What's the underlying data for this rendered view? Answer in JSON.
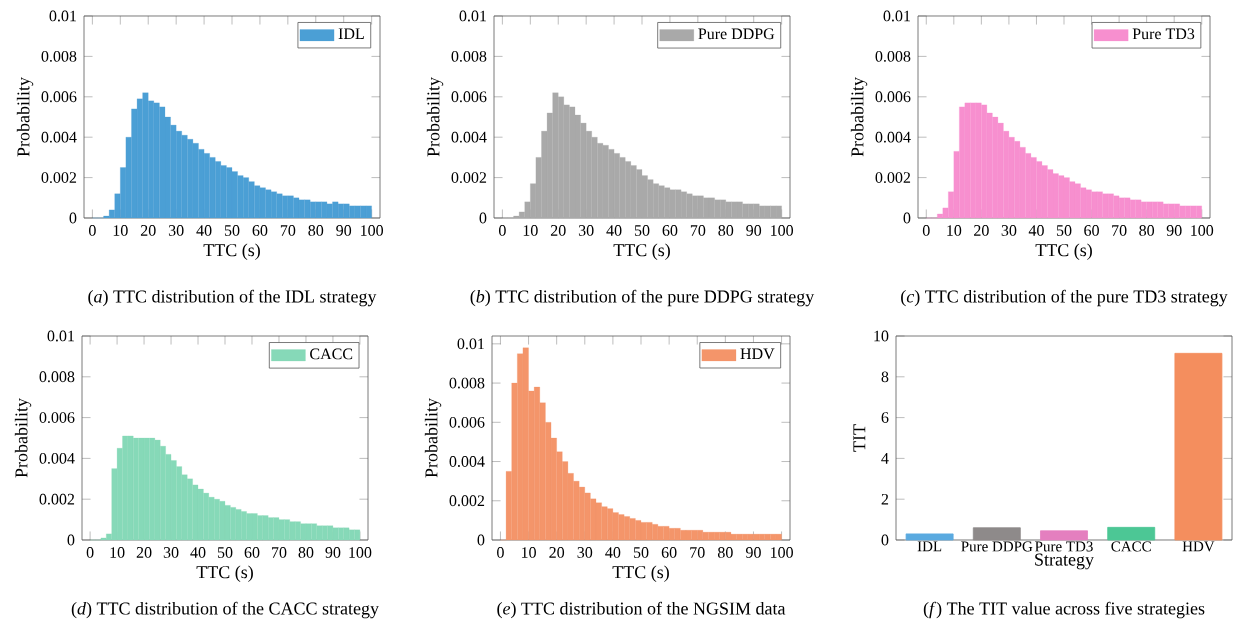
{
  "chart_data": [
    {
      "type": "histogram",
      "xlabel": "TTC (s)",
      "ylabel": "Probability",
      "legend": "top right",
      "bins": [
        0,
        2,
        4,
        6,
        8,
        10,
        12,
        14,
        16,
        18,
        20,
        22,
        24,
        26,
        28,
        30,
        32,
        34,
        36,
        38,
        40,
        42,
        44,
        46,
        48,
        50,
        52,
        54,
        56,
        58,
        60,
        62,
        64,
        66,
        68,
        70,
        72,
        74,
        76,
        78,
        80,
        82,
        84,
        86,
        88,
        90,
        92,
        94,
        96,
        98,
        100
      ],
      "series": [
        {
          "name": "IDL",
          "color": "#4b9fd5",
          "values": [
            0,
            0,
            0.0001,
            0.0004,
            0.0012,
            0.0025,
            0.004,
            0.0054,
            0.0059,
            0.0062,
            0.0058,
            0.0057,
            0.0055,
            0.005,
            0.0046,
            0.0043,
            0.0041,
            0.0039,
            0.0037,
            0.0034,
            0.0032,
            0.003,
            0.0028,
            0.0026,
            0.0025,
            0.0023,
            0.0021,
            0.002,
            0.0018,
            0.0016,
            0.0015,
            0.0014,
            0.0013,
            0.0012,
            0.0011,
            0.0011,
            0.001,
            0.0009,
            0.0009,
            0.0008,
            0.0008,
            0.0008,
            0.0007,
            0.0008,
            0.0007,
            0.0007,
            0.0006,
            0.0006,
            0.0006,
            0.0006
          ]
        }
      ],
      "xlim": [
        -3,
        103
      ],
      "xticks": [
        0,
        10,
        20,
        30,
        40,
        50,
        60,
        70,
        80,
        90,
        100
      ],
      "ylim": [
        0,
        0.01
      ],
      "yticks": [
        0,
        0.002,
        0.004,
        0.006,
        0.008,
        0.01
      ],
      "annotations": [
        "(*a*) TTC distribution of the IDL strategy"
      ]
    },
    {
      "type": "histogram",
      "xlabel": "TTC (s)",
      "ylabel": "Probability",
      "legend": "top right",
      "bins": [
        0,
        2,
        4,
        6,
        8,
        10,
        12,
        14,
        16,
        18,
        20,
        22,
        24,
        26,
        28,
        30,
        32,
        34,
        36,
        38,
        40,
        42,
        44,
        46,
        48,
        50,
        52,
        54,
        56,
        58,
        60,
        62,
        64,
        66,
        68,
        70,
        72,
        74,
        76,
        78,
        80,
        82,
        84,
        86,
        88,
        90,
        92,
        94,
        96,
        98,
        100
      ],
      "series": [
        {
          "name": "Pure DDPG",
          "color": "#a9a9a9",
          "values": [
            0,
            0,
            0.0001,
            0.0003,
            0.0008,
            0.0017,
            0.003,
            0.0043,
            0.0052,
            0.0062,
            0.006,
            0.0056,
            0.0055,
            0.0051,
            0.0047,
            0.0043,
            0.004,
            0.0037,
            0.0036,
            0.0034,
            0.0032,
            0.003,
            0.0028,
            0.0026,
            0.0024,
            0.0021,
            0.0019,
            0.0017,
            0.0016,
            0.0015,
            0.0014,
            0.0014,
            0.0013,
            0.0012,
            0.0011,
            0.0011,
            0.001,
            0.001,
            0.0009,
            0.0009,
            0.0008,
            0.0008,
            0.0008,
            0.0007,
            0.0007,
            0.0007,
            0.0006,
            0.0006,
            0.0006,
            0.0006
          ]
        }
      ],
      "xlim": [
        -3,
        103
      ],
      "xticks": [
        0,
        10,
        20,
        30,
        40,
        50,
        60,
        70,
        80,
        90,
        100
      ],
      "ylim": [
        0,
        0.01
      ],
      "yticks": [
        0,
        0.002,
        0.004,
        0.006,
        0.008,
        0.01
      ],
      "annotations": [
        "(*b*) TTC distribution of the pure DDPG strategy"
      ]
    },
    {
      "type": "histogram",
      "xlabel": "TTC (s)",
      "ylabel": "Probability",
      "legend": "top right",
      "bins": [
        0,
        2,
        4,
        6,
        8,
        10,
        12,
        14,
        16,
        18,
        20,
        22,
        24,
        26,
        28,
        30,
        32,
        34,
        36,
        38,
        40,
        42,
        44,
        46,
        48,
        50,
        52,
        54,
        56,
        58,
        60,
        62,
        64,
        66,
        68,
        70,
        72,
        74,
        76,
        78,
        80,
        82,
        84,
        86,
        88,
        90,
        92,
        94,
        96,
        98,
        100
      ],
      "series": [
        {
          "name": "Pure TD3",
          "color": "#f78fcf",
          "values": [
            0,
            0,
            0.0002,
            0.0005,
            0.0013,
            0.0033,
            0.0055,
            0.0057,
            0.0057,
            0.0057,
            0.0056,
            0.0052,
            0.005,
            0.0047,
            0.0043,
            0.004,
            0.0038,
            0.0035,
            0.0032,
            0.003,
            0.0028,
            0.0026,
            0.0024,
            0.0022,
            0.0021,
            0.002,
            0.0018,
            0.0017,
            0.0015,
            0.0014,
            0.0013,
            0.0013,
            0.0012,
            0.0012,
            0.0011,
            0.001,
            0.001,
            0.0009,
            0.0009,
            0.0008,
            0.0008,
            0.0008,
            0.0008,
            0.0007,
            0.0007,
            0.0007,
            0.0006,
            0.0006,
            0.0006,
            0.0006
          ]
        }
      ],
      "xlim": [
        -3,
        103
      ],
      "xticks": [
        0,
        10,
        20,
        30,
        40,
        50,
        60,
        70,
        80,
        90,
        100
      ],
      "ylim": [
        0,
        0.01
      ],
      "yticks": [
        0,
        0.002,
        0.004,
        0.006,
        0.008,
        0.01
      ],
      "annotations": [
        "(*c*) TTC distribution of the pure TD3 strategy"
      ]
    },
    {
      "type": "histogram",
      "xlabel": "TTC (s)",
      "ylabel": "Probability",
      "legend": "top right",
      "bins": [
        0,
        2,
        4,
        6,
        8,
        10,
        12,
        14,
        16,
        18,
        20,
        22,
        24,
        26,
        28,
        30,
        32,
        34,
        36,
        38,
        40,
        42,
        44,
        46,
        48,
        50,
        52,
        54,
        56,
        58,
        60,
        62,
        64,
        66,
        68,
        70,
        72,
        74,
        76,
        78,
        80,
        82,
        84,
        86,
        88,
        90,
        92,
        94,
        96,
        98,
        100
      ],
      "series": [
        {
          "name": "CACC",
          "color": "#86d9b8",
          "values": [
            0,
            0,
            0.0001,
            0.0003,
            0.0035,
            0.0045,
            0.0051,
            0.0051,
            0.005,
            0.005,
            0.005,
            0.005,
            0.0049,
            0.0046,
            0.0042,
            0.0039,
            0.0036,
            0.0032,
            0.003,
            0.0027,
            0.0025,
            0.0023,
            0.0021,
            0.002,
            0.0019,
            0.0017,
            0.0016,
            0.0015,
            0.0014,
            0.0013,
            0.0013,
            0.0012,
            0.0012,
            0.0011,
            0.0011,
            0.001,
            0.001,
            0.0009,
            0.0009,
            0.0008,
            0.0008,
            0.0008,
            0.0007,
            0.0007,
            0.0007,
            0.0006,
            0.0006,
            0.0006,
            0.0005,
            0.0005
          ]
        }
      ],
      "xlim": [
        -3,
        103
      ],
      "xticks": [
        0,
        10,
        20,
        30,
        40,
        50,
        60,
        70,
        80,
        90,
        100
      ],
      "ylim": [
        0,
        0.01
      ],
      "yticks": [
        0,
        0.002,
        0.004,
        0.006,
        0.008,
        0.01
      ],
      "annotations": [
        "(*d*) TTC distribution of the CACC strategy"
      ]
    },
    {
      "type": "histogram",
      "xlabel": "TTC (s)",
      "ylabel": "Probability",
      "legend": "top right",
      "bins": [
        0,
        2,
        4,
        6,
        8,
        10,
        12,
        14,
        16,
        18,
        20,
        22,
        24,
        26,
        28,
        30,
        32,
        34,
        36,
        38,
        40,
        42,
        44,
        46,
        48,
        50,
        52,
        54,
        56,
        58,
        60,
        62,
        64,
        66,
        68,
        70,
        72,
        74,
        76,
        78,
        80,
        82,
        84,
        86,
        88,
        90,
        92,
        94,
        96,
        98,
        100
      ],
      "series": [
        {
          "name": "HDV",
          "color": "#f4956a",
          "values": [
            0,
            0.0035,
            0.008,
            0.0095,
            0.0098,
            0.0076,
            0.0078,
            0.007,
            0.006,
            0.0052,
            0.0045,
            0.004,
            0.0034,
            0.003,
            0.0027,
            0.0024,
            0.0021,
            0.0019,
            0.0017,
            0.0016,
            0.0014,
            0.0013,
            0.0012,
            0.0011,
            0.001,
            0.0009,
            0.0009,
            0.0008,
            0.0007,
            0.0007,
            0.0006,
            0.0006,
            0.0005,
            0.0005,
            0.0005,
            0.0005,
            0.0004,
            0.0004,
            0.0004,
            0.0004,
            0.0004,
            0.0003,
            0.0003,
            0.0003,
            0.0003,
            0.0003,
            0.0003,
            0.0003,
            0.0003,
            0.0003
          ]
        }
      ],
      "xlim": [
        -3,
        103
      ],
      "xticks": [
        0,
        10,
        20,
        30,
        40,
        50,
        60,
        70,
        80,
        90,
        100
      ],
      "ylim": [
        0,
        0.0104
      ],
      "yticks": [
        0,
        0.002,
        0.004,
        0.006,
        0.008,
        0.01
      ],
      "annotations": [
        "(*e*) TTC distribution of the NGSIM data"
      ]
    },
    {
      "type": "bar",
      "xlabel": "Strategy",
      "ylabel": "TIT",
      "categories": [
        "IDL",
        "Pure DDPG",
        "Pure TD3",
        "CACC",
        "HDV"
      ],
      "values": [
        0.3,
        0.6,
        0.45,
        0.62,
        9.15
      ],
      "colors": [
        "#5aaae0",
        "#8e8a8a",
        "#e47fbf",
        "#4cc795",
        "#f48e5e"
      ],
      "ylim": [
        0,
        10
      ],
      "yticks": [
        0,
        2,
        4,
        6,
        8,
        10
      ],
      "annotations": [
        "(*f*) The TIT value across five strategies"
      ]
    }
  ]
}
